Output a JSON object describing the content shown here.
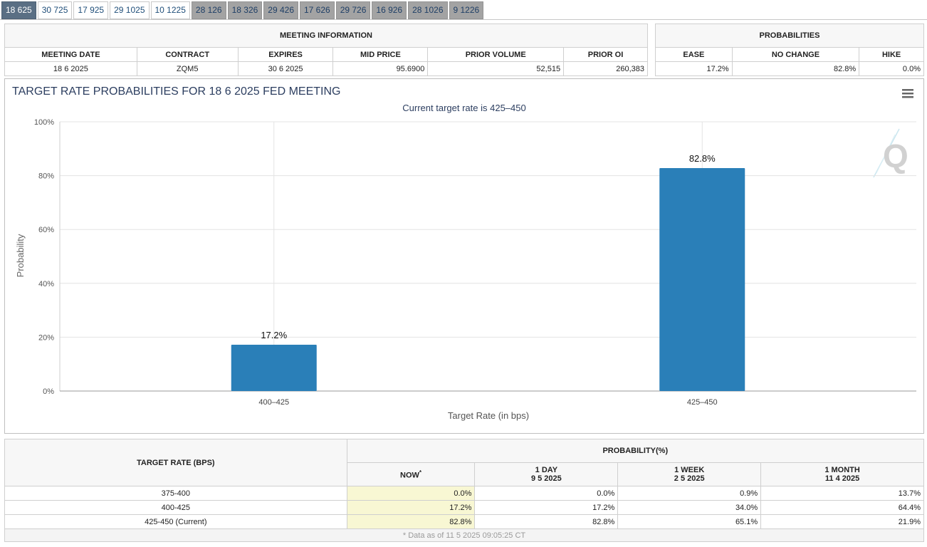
{
  "tabs": [
    {
      "label": "18 625",
      "state": "active"
    },
    {
      "label": "30 725",
      "state": "normal"
    },
    {
      "label": "17 925",
      "state": "normal"
    },
    {
      "label": "29 1025",
      "state": "normal"
    },
    {
      "label": "10 1225",
      "state": "normal"
    },
    {
      "label": "28 126",
      "state": "muted"
    },
    {
      "label": "18 326",
      "state": "muted"
    },
    {
      "label": "29 426",
      "state": "muted"
    },
    {
      "label": "17 626",
      "state": "muted"
    },
    {
      "label": "29 726",
      "state": "muted"
    },
    {
      "label": "16 926",
      "state": "muted"
    },
    {
      "label": "28 1026",
      "state": "muted"
    },
    {
      "label": "9 1226",
      "state": "muted"
    }
  ],
  "meeting_info": {
    "title": "MEETING INFORMATION",
    "headers": {
      "meeting_date": "MEETING DATE",
      "contract": "CONTRACT",
      "expires": "EXPIRES",
      "mid_price": "MID PRICE",
      "prior_volume": "PRIOR VOLUME",
      "prior_oi": "PRIOR OI"
    },
    "values": {
      "meeting_date": "18 6 2025",
      "contract": "ZQM5",
      "expires": "30 6 2025",
      "mid_price": "95.6900",
      "prior_volume": "52,515",
      "prior_oi": "260,383"
    }
  },
  "probabilities": {
    "title": "PROBABILITIES",
    "headers": {
      "ease": "EASE",
      "no_change": "NO CHANGE",
      "hike": "HIKE"
    },
    "values": {
      "ease": "17.2%",
      "no_change": "82.8%",
      "hike": "0.0%"
    }
  },
  "chart": {
    "menu_icon": "hamburger-menu-icon",
    "watermark_icon": "q-logo-icon",
    "bar_color": "#2a7fb8"
  },
  "chart_data": {
    "type": "bar",
    "title": "TARGET RATE PROBABILITIES FOR 18 6 2025 FED MEETING",
    "subtitle": "Current target rate is 425–450",
    "xlabel": "Target Rate (in bps)",
    "ylabel": "Probability",
    "categories": [
      "400–425",
      "425–450"
    ],
    "values": [
      17.2,
      82.8
    ],
    "data_labels": [
      "17.2%",
      "82.8%"
    ],
    "ylim": [
      0,
      100
    ],
    "yticks": [
      "0%",
      "20%",
      "40%",
      "60%",
      "80%",
      "100%"
    ],
    "grid": true,
    "legend": "none"
  },
  "rate_table": {
    "target_rate_header": "TARGET RATE (BPS)",
    "probability_header": "PROBABILITY(%)",
    "columns": [
      {
        "line1": "NOW",
        "line2": "",
        "marker": "*"
      },
      {
        "line1": "1 DAY",
        "line2": "9 5 2025",
        "marker": ""
      },
      {
        "line1": "1 WEEK",
        "line2": "2 5 2025",
        "marker": ""
      },
      {
        "line1": "1 MONTH",
        "line2": "11 4 2025",
        "marker": ""
      }
    ],
    "rows": [
      {
        "rate": "375-400",
        "now": "0.0%",
        "day": "0.0%",
        "week": "0.9%",
        "month": "13.7%"
      },
      {
        "rate": "400-425",
        "now": "17.2%",
        "day": "17.2%",
        "week": "34.0%",
        "month": "64.4%"
      },
      {
        "rate": "425-450 (Current)",
        "now": "82.8%",
        "day": "82.8%",
        "week": "65.1%",
        "month": "21.9%"
      }
    ],
    "footnote": "* Data as of 11 5 2025 09:05:25 CT"
  }
}
